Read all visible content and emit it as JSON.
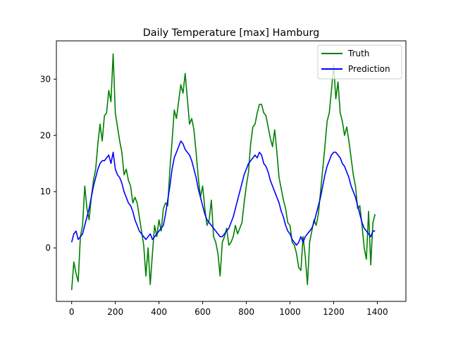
{
  "chart_data": {
    "type": "line",
    "title": "Daily Temperature [max] Hamburg",
    "xlabel": "",
    "ylabel": "",
    "xlim": [
      -70,
      1531
    ],
    "ylim": [
      -9.5,
      36.8
    ],
    "x_ticks": [
      0,
      200,
      400,
      600,
      800,
      1000,
      1200,
      1400
    ],
    "y_ticks": [
      0,
      10,
      20,
      30
    ],
    "grid": false,
    "legend_position": "top-right",
    "x_start": 0,
    "x_step": 10,
    "series": [
      {
        "name": "Truth",
        "color": "#008000",
        "values": [
          -7.5,
          -2.5,
          -4.5,
          -6.0,
          2.0,
          4.0,
          11.0,
          7.0,
          5.0,
          9.0,
          12.0,
          14.0,
          18.5,
          22.0,
          19.0,
          23.5,
          24.0,
          28.0,
          26.0,
          34.5,
          24.0,
          21.5,
          19.0,
          17.0,
          13.0,
          14.0,
          12.0,
          11.0,
          8.0,
          9.0,
          8.0,
          5.5,
          3.0,
          0.5,
          -5.0,
          0.0,
          -6.5,
          -1.0,
          4.0,
          2.0,
          5.0,
          3.0,
          7.0,
          8.0,
          7.5,
          14.0,
          19.0,
          24.5,
          23.0,
          26.0,
          29.0,
          27.5,
          31.0,
          26.5,
          22.0,
          23.0,
          21.0,
          17.0,
          12.5,
          9.0,
          11.0,
          7.0,
          4.0,
          5.0,
          8.5,
          2.0,
          1.0,
          -1.0,
          -5.0,
          1.0,
          2.0,
          3.5,
          0.5,
          1.0,
          2.0,
          4.0,
          2.5,
          3.5,
          4.5,
          8.0,
          11.0,
          13.5,
          18.5,
          21.5,
          22.0,
          24.0,
          25.5,
          25.5,
          24.0,
          23.5,
          21.5,
          19.5,
          18.0,
          21.0,
          17.0,
          12.5,
          10.5,
          8.5,
          7.0,
          4.5,
          4.0,
          1.0,
          0.5,
          -1.0,
          -3.5,
          -4.0,
          2.0,
          -1.5,
          -6.5,
          1.0,
          3.0,
          5.0,
          4.0,
          6.0,
          10.0,
          14.0,
          18.0,
          22.5,
          24.0,
          28.0,
          32.5,
          26.5,
          29.5,
          24.0,
          22.5,
          20.0,
          21.5,
          19.0,
          16.0,
          13.0,
          11.0,
          7.0,
          7.5,
          4.0,
          0.0,
          -2.0,
          6.5,
          -3.0,
          4.5,
          6.0
        ]
      },
      {
        "name": "Prediction",
        "color": "#0000ff",
        "values": [
          1.0,
          2.5,
          3.0,
          1.5,
          2.0,
          2.5,
          4.0,
          5.5,
          7.0,
          9.0,
          11.0,
          12.5,
          14.0,
          15.0,
          15.5,
          15.5,
          16.0,
          16.5,
          15.0,
          17.0,
          14.0,
          13.0,
          12.5,
          11.5,
          10.0,
          9.0,
          8.0,
          7.5,
          6.5,
          5.0,
          4.0,
          3.0,
          2.5,
          2.0,
          1.5,
          2.0,
          2.5,
          1.5,
          2.0,
          2.5,
          3.0,
          3.5,
          4.0,
          6.0,
          8.5,
          11.0,
          14.0,
          16.0,
          17.0,
          18.0,
          19.0,
          18.5,
          17.5,
          17.0,
          16.5,
          15.5,
          14.0,
          12.5,
          10.5,
          9.0,
          7.5,
          6.0,
          5.0,
          4.5,
          4.0,
          3.5,
          3.0,
          2.5,
          2.0,
          2.0,
          2.5,
          3.0,
          3.5,
          4.5,
          5.5,
          7.0,
          8.5,
          10.0,
          11.5,
          13.0,
          14.0,
          15.0,
          15.5,
          16.0,
          16.5,
          16.0,
          17.0,
          16.5,
          15.0,
          14.5,
          13.5,
          12.0,
          11.0,
          10.0,
          9.0,
          8.0,
          6.5,
          5.5,
          4.0,
          3.0,
          2.5,
          1.5,
          1.0,
          0.5,
          1.0,
          2.0,
          1.0,
          2.0,
          2.5,
          3.0,
          3.5,
          4.5,
          6.0,
          7.5,
          9.0,
          11.0,
          13.0,
          14.5,
          15.5,
          16.5,
          17.0,
          17.0,
          16.5,
          16.0,
          15.0,
          14.5,
          13.5,
          12.5,
          11.0,
          10.0,
          9.0,
          7.5,
          6.0,
          4.5,
          3.5,
          3.0,
          2.5,
          2.0,
          3.0,
          3.0
        ]
      }
    ]
  }
}
